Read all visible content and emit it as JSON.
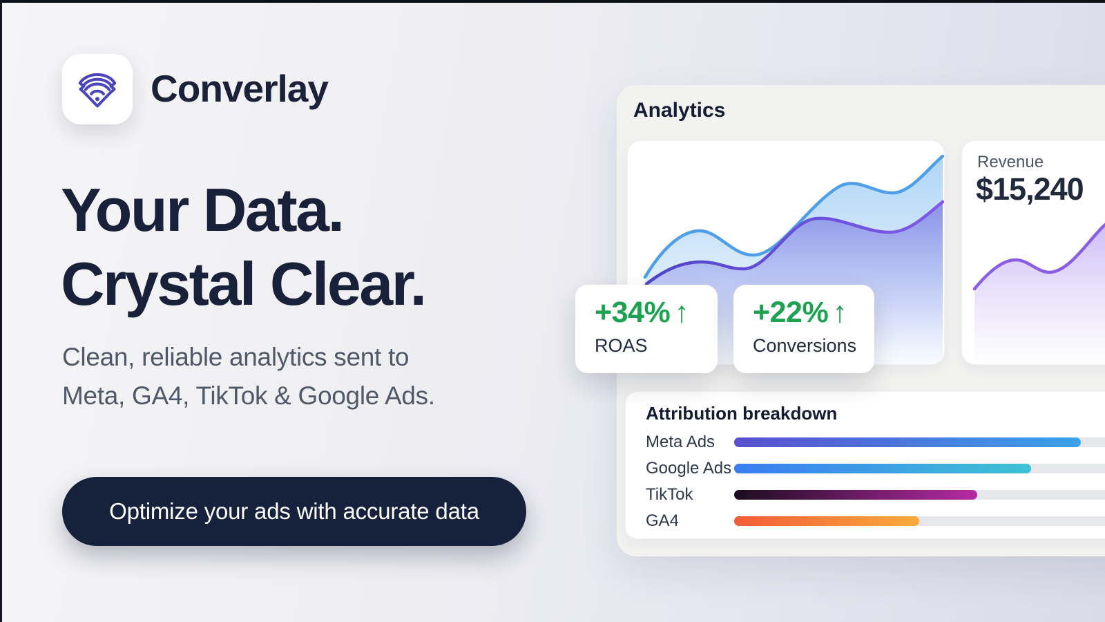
{
  "brand": {
    "name": "Converlay"
  },
  "hero": {
    "headline_line1": "Your Data.",
    "headline_line2": "Crystal Clear.",
    "subtitle_line1": "Clean, reliable analytics sent to",
    "subtitle_line2": "Meta, GA4, TikTok & Google Ads.",
    "cta_label": "Optimize your ads with accurate data"
  },
  "analytics_panel": {
    "title": "Analytics",
    "revenue_card": {
      "label": "Revenue",
      "value": "$15,240"
    },
    "stat_badges": [
      {
        "value": "+34%",
        "arrow": "↑",
        "label": "ROAS"
      },
      {
        "value": "+22%",
        "arrow": "↑",
        "label": "Conversions"
      }
    ],
    "attribution": {
      "title": "Attribution breakdown",
      "rows": [
        {
          "label": "Meta Ads",
          "percent": 90,
          "color_start": "#5a4fd0",
          "color_end": "#3ba2ea"
        },
        {
          "label": "Google Ads",
          "percent": 77,
          "color_start": "#3b7cf2",
          "color_end": "#3ec2d4"
        },
        {
          "label": "TikTok",
          "percent": 63,
          "color_start": "#1c0c20",
          "color_end": "#b62aa4"
        },
        {
          "label": "GA4",
          "percent": 48,
          "color_start": "#f25c38",
          "color_end": "#f9ab3c"
        }
      ]
    }
  },
  "colors": {
    "headline_navy": "#19203a",
    "cta_navy": "#16213c",
    "stat_green": "#1ca251",
    "logo_indigo": "#4b45bd",
    "chart_blue": "#4f9fe8",
    "chart_purple_start": "#4f46c6",
    "chart_purple_end": "#8059ea",
    "revenue_violet": "#8a5ee4",
    "bar_track": "#e5e7eb"
  },
  "chart_data": [
    {
      "type": "area",
      "title": "Analytics overview (decorative dual wave, no axes)",
      "series": [
        {
          "name": "blue-wave",
          "approx_trend_0to1": [
            0.39,
            0.6,
            0.49,
            0.8,
            0.77,
            0.93
          ]
        },
        {
          "name": "purple-wave",
          "approx_trend_0to1": [
            0.36,
            0.45,
            0.42,
            0.66,
            0.59,
            0.73
          ]
        }
      ],
      "legend_position": "none",
      "grid": false
    },
    {
      "type": "area",
      "title": "Revenue sparkline",
      "value_label": "$15,240",
      "approx_trend_0to1": [
        0.34,
        0.47,
        0.41,
        0.62,
        0.67
      ],
      "legend_position": "none",
      "grid": false
    },
    {
      "type": "bar",
      "title": "Attribution breakdown",
      "categories": [
        "Meta Ads",
        "Google Ads",
        "TikTok",
        "GA4"
      ],
      "values": [
        90,
        77,
        63,
        48
      ],
      "xlabel": "",
      "ylabel": "",
      "xlim_percent": [
        0,
        100
      ],
      "grid": false
    }
  ]
}
